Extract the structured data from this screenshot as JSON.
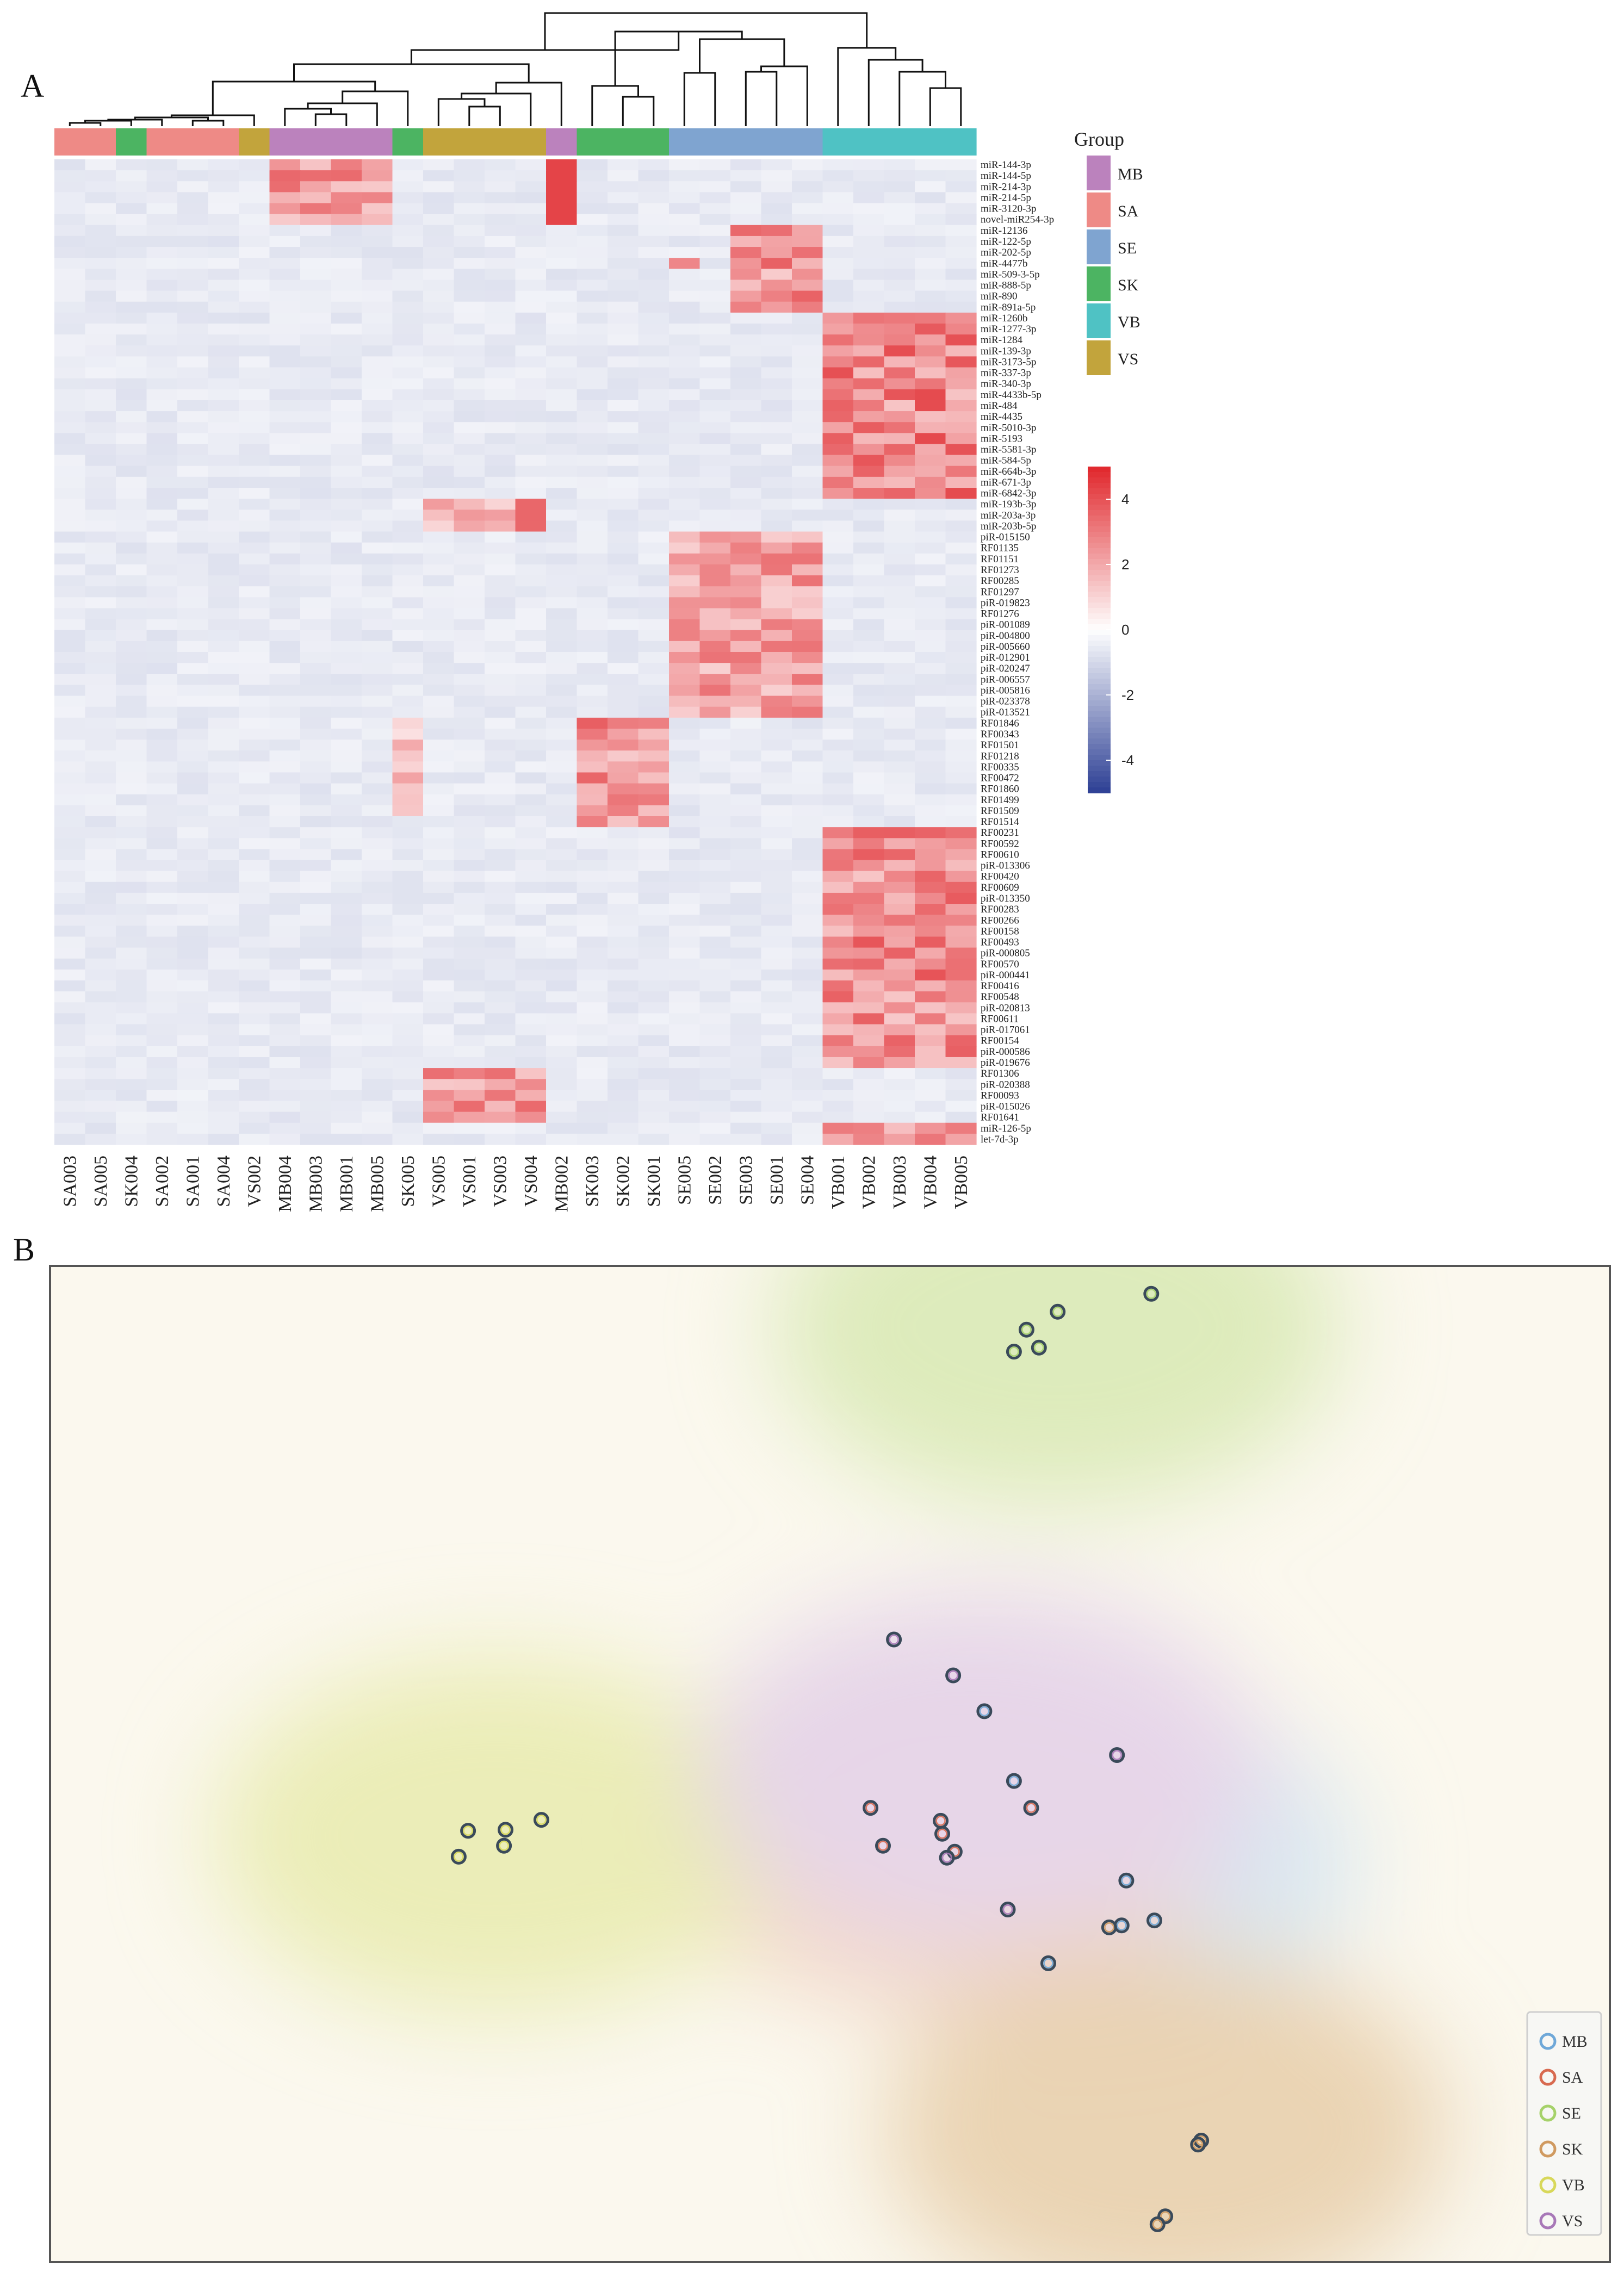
{
  "panels": {
    "a_label": "A",
    "b_label": "B"
  },
  "chart_data": [
    {
      "type": "heatmap",
      "title": "",
      "columns": [
        "SA003",
        "SA005",
        "SK004",
        "SA002",
        "SA001",
        "SA004",
        "VS002",
        "MB004",
        "MB003",
        "MB001",
        "MB005",
        "SK005",
        "VS005",
        "VS001",
        "VS003",
        "VS004",
        "MB002",
        "SK003",
        "SK002",
        "SK001",
        "SE005",
        "SE002",
        "SE003",
        "SE001",
        "SE004",
        "VB001",
        "VB002",
        "VB003",
        "VB004",
        "VB005"
      ],
      "column_groups": [
        "SA",
        "SA",
        "SK",
        "SA",
        "SA",
        "SA",
        "VS",
        "MB",
        "MB",
        "MB",
        "MB",
        "SK",
        "VS",
        "VS",
        "VS",
        "VS",
        "MB",
        "SK",
        "SK",
        "SK",
        "SE",
        "SE",
        "SE",
        "SE",
        "SE",
        "VB",
        "VB",
        "VB",
        "VB",
        "VB"
      ],
      "rows": [
        "miR-144-3p",
        "miR-144-5p",
        "miR-214-3p",
        "miR-214-5p",
        "miR-3120-3p",
        "novel-miR254-3p",
        "miR-12136",
        "miR-122-5p",
        "miR-202-5p",
        "miR-4477b",
        "miR-509-3-5p",
        "miR-888-5p",
        "miR-890",
        "miR-891a-5p",
        "miR-1260b",
        "miR-1277-3p",
        "miR-1284",
        "miR-139-3p",
        "miR-3173-5p",
        "miR-337-3p",
        "miR-340-3p",
        "miR-4433b-5p",
        "miR-484",
        "miR-4435",
        "miR-5010-3p",
        "miR-5193",
        "miR-5581-3p",
        "miR-584-5p",
        "miR-664b-3p",
        "miR-671-3p",
        "miR-6842-3p",
        "miR-193b-3p",
        "miR-203a-3p",
        "miR-203b-5p",
        "piR-015150",
        "RF01135",
        "RF01151",
        "RF01273",
        "RF00285",
        "RF01297",
        "piR-019823",
        "RF01276",
        "piR-001089",
        "piR-004800",
        "piR-005660",
        "piR-012901",
        "piR-020247",
        "piR-006557",
        "piR-005816",
        "piR-023378",
        "piR-013521",
        "RF01846",
        "RF00343",
        "RF01501",
        "RF01218",
        "RF00335",
        "RF00472",
        "RF01860",
        "RF01499",
        "RF01509",
        "RF01514",
        "RF00231",
        "RF00592",
        "RF00610",
        "piR-013306",
        "RF00420",
        "RF00609",
        "piR-013350",
        "RF00283",
        "RF00266",
        "RF00158",
        "RF00493",
        "piR-000805",
        "RF00570",
        "piR-000441",
        "RF00416",
        "RF00548",
        "piR-020813",
        "RF00611",
        "piR-017061",
        "RF00154",
        "piR-000586",
        "piR-019676",
        "RF01306",
        "piR-020388",
        "RF00093",
        "piR-015026",
        "RF01641",
        "miR-126-5p",
        "let-7d-3p"
      ],
      "row_blocks": [
        {
          "rows": [
            0,
            5
          ],
          "cols": [
            7,
            8,
            9,
            10,
            16
          ],
          "level": 3.2,
          "strong_cols": [
            16
          ]
        },
        {
          "rows": [
            6,
            13
          ],
          "cols": [
            22,
            23,
            24
          ],
          "level": 3.4
        },
        {
          "rows": [
            9,
            9
          ],
          "cols": [
            20
          ],
          "level": 4.5
        },
        {
          "rows": [
            14,
            30
          ],
          "cols": [
            25,
            26,
            27,
            28,
            29
          ],
          "level": 3.8
        },
        {
          "rows": [
            31,
            33
          ],
          "cols": [
            12,
            13,
            14,
            15
          ],
          "level": 2.6,
          "strong_cols": [
            15
          ]
        },
        {
          "rows": [
            34,
            50
          ],
          "cols": [
            20,
            21,
            22,
            23,
            24
          ],
          "level": 3.0
        },
        {
          "rows": [
            51,
            60
          ],
          "cols": [
            17,
            18,
            19
          ],
          "level": 3.4
        },
        {
          "rows": [
            51,
            59
          ],
          "cols": [
            11
          ],
          "level": 2.0
        },
        {
          "rows": [
            61,
            82
          ],
          "cols": [
            25,
            26,
            27,
            28,
            29
          ],
          "level": 3.6
        },
        {
          "rows": [
            83,
            87
          ],
          "cols": [
            12,
            13,
            14,
            15
          ],
          "level": 3.2
        },
        {
          "rows": [
            88,
            89
          ],
          "cols": [
            25,
            26,
            27,
            28,
            29
          ],
          "level": 3.0
        }
      ],
      "color_scale": {
        "min": -5,
        "max": 5,
        "ticks": [
          4,
          2,
          0,
          -2,
          -4
        ],
        "low": "#2c3f94",
        "mid": "#ffffff",
        "high": "#e0262b",
        "base": "#dde1ec"
      },
      "group_legend": {
        "title": "Group",
        "items": [
          {
            "name": "MB",
            "color": "#bb82bd"
          },
          {
            "name": "SA",
            "color": "#ee8a86"
          },
          {
            "name": "SE",
            "color": "#7fa4d0"
          },
          {
            "name": "SK",
            "color": "#4cb462"
          },
          {
            "name": "VB",
            "color": "#4fc2c4"
          },
          {
            "name": "VS",
            "color": "#c2a43c"
          }
        ]
      }
    },
    {
      "type": "scatter",
      "title": "",
      "xlabel": "",
      "ylabel": "",
      "xlim": [
        0,
        100
      ],
      "ylim": [
        0,
        100
      ],
      "series": [
        {
          "name": "MB",
          "color": "#6fa8d8",
          "x": [
            59.9,
            61.8,
            69.0,
            70.8,
            68.7,
            64.0
          ],
          "y": [
            55.3,
            48.3,
            38.3,
            34.3,
            33.8,
            30.0
          ]
        },
        {
          "name": "SA",
          "color": "#d86a50",
          "x": [
            52.6,
            57.1,
            62.9,
            53.4,
            57.2,
            58.0
          ],
          "y": [
            45.6,
            44.3,
            45.6,
            41.8,
            43.0,
            41.2
          ]
        },
        {
          "name": "SE",
          "color": "#a6d26a",
          "x": [
            70.6,
            64.6,
            62.6,
            63.4,
            61.8
          ],
          "y": [
            97.2,
            95.4,
            93.6,
            91.8,
            91.4
          ]
        },
        {
          "name": "SK",
          "color": "#d09a60",
          "x": [
            67.9,
            73.8,
            73.6,
            71.5,
            71.0
          ],
          "y": [
            33.6,
            12.2,
            11.8,
            4.6,
            3.8
          ]
        },
        {
          "name": "VB",
          "color": "#d8d85a",
          "x": [
            31.5,
            26.8,
            29.2,
            29.1,
            26.2
          ],
          "y": [
            44.4,
            43.3,
            43.4,
            41.8,
            40.7
          ]
        },
        {
          "name": "VS",
          "color": "#a878b8",
          "x": [
            54.1,
            57.9,
            68.4,
            57.5,
            61.4
          ],
          "y": [
            62.5,
            58.9,
            50.9,
            40.6,
            35.4
          ]
        }
      ],
      "legend_position": "bottom-right"
    }
  ]
}
